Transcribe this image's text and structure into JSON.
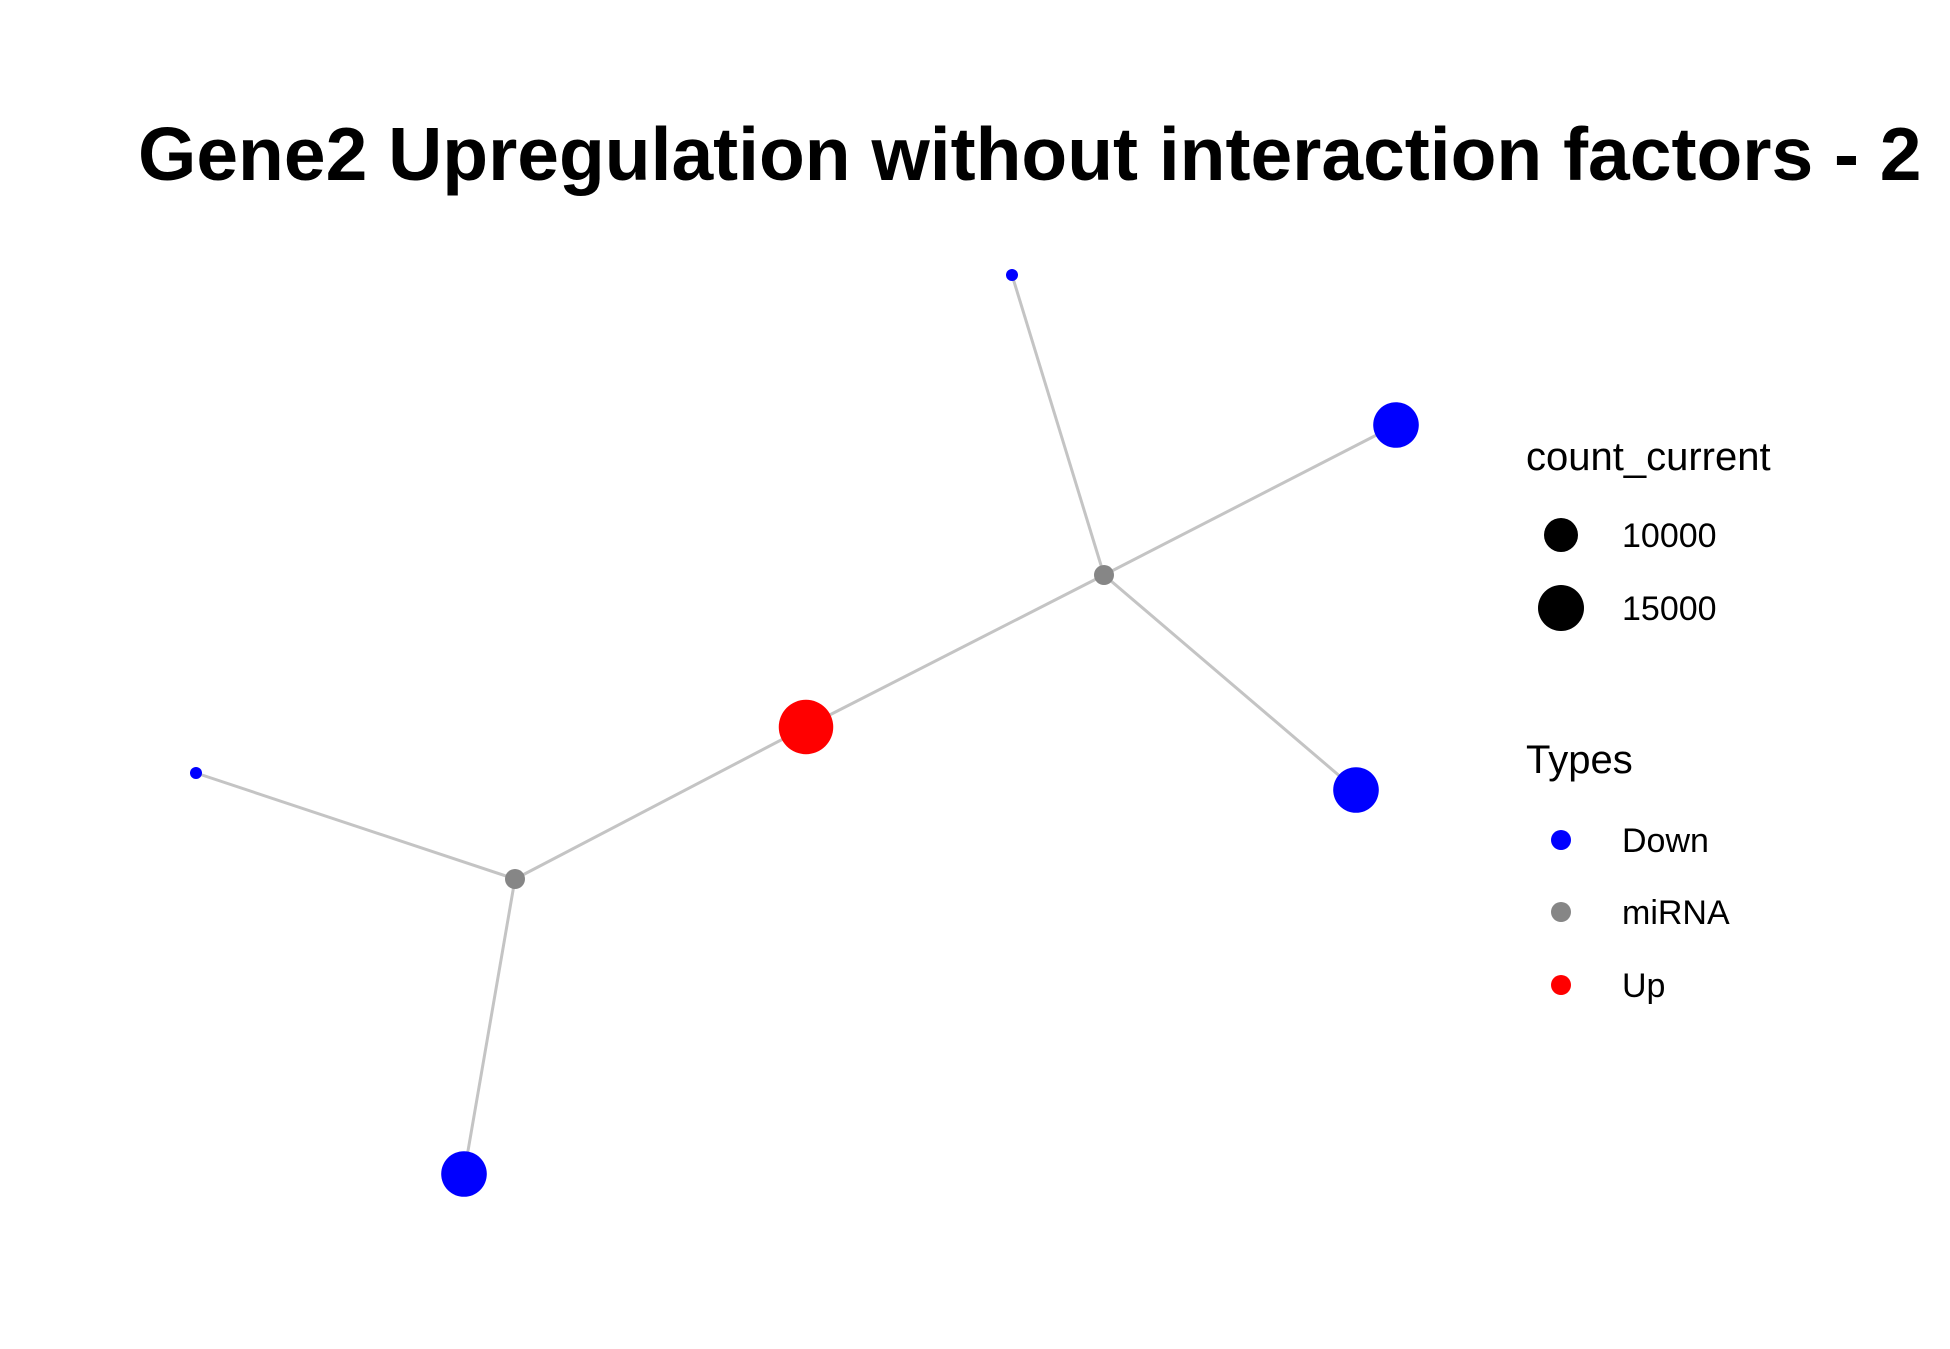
{
  "title": "Gene2 Upregulation without interaction factors - 2",
  "colors": {
    "Down": "#0000ff",
    "miRNA": "#868686",
    "Up": "#ff0000",
    "edge": "#c4c4c4",
    "size_key": "#000000"
  },
  "legend": {
    "size_title": "count_current",
    "size_entries": [
      {
        "label": "10000",
        "value": 10000
      },
      {
        "label": "15000",
        "value": 15000
      }
    ],
    "type_title": "Types",
    "type_entries": [
      {
        "label": "Down",
        "type": "Down"
      },
      {
        "label": "miRNA",
        "type": "miRNA"
      },
      {
        "label": "Up",
        "type": "Up"
      }
    ]
  },
  "network": {
    "nodes": [
      {
        "id": "up1",
        "type": "Up",
        "count": 16000
      },
      {
        "id": "mir1",
        "type": "miRNA",
        "count": 4000
      },
      {
        "id": "mir2",
        "type": "miRNA",
        "count": 4000
      },
      {
        "id": "down_top",
        "type": "Down",
        "count": 3000
      },
      {
        "id": "down_right",
        "type": "Down",
        "count": 10000
      },
      {
        "id": "down_mid",
        "type": "Down",
        "count": 10000
      },
      {
        "id": "down_left",
        "type": "Down",
        "count": 3000
      },
      {
        "id": "down_bottom",
        "type": "Down",
        "count": 10000
      }
    ],
    "edges": [
      [
        "up1",
        "mir1"
      ],
      [
        "up1",
        "mir2"
      ],
      [
        "mir1",
        "down_top"
      ],
      [
        "mir1",
        "down_right"
      ],
      [
        "mir1",
        "down_mid"
      ],
      [
        "mir2",
        "down_left"
      ],
      [
        "mir2",
        "down_bottom"
      ]
    ]
  }
}
